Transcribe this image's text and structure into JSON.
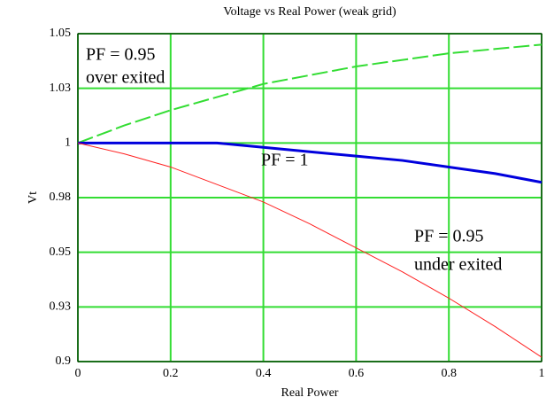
{
  "chart_data": {
    "type": "line",
    "title": "Voltage vs Real Power (weak grid)",
    "x_label": "Real Power",
    "y_label": "Vt",
    "x": [
      0,
      0.1,
      0.2,
      0.3,
      0.4,
      0.5,
      0.6,
      0.7,
      0.8,
      0.9,
      1
    ],
    "series": [
      {
        "color": "#33dd33",
        "dash": true,
        "values": [
          1,
          1.008,
          1.015,
          1.021,
          1.027,
          1.031,
          1.035,
          1.038,
          1.041,
          1.043,
          1.045
        ]
      },
      {
        "color": "#0000dd",
        "dash": false,
        "width": 3,
        "values": [
          1,
          1,
          1,
          1,
          0.998,
          0.996,
          0.994,
          0.992,
          0.989,
          0.986,
          0.982
        ]
      },
      {
        "color": "#ff2020",
        "dash": false,
        "width": 1,
        "values": [
          1,
          0.995,
          0.989,
          0.981,
          0.973,
          0.963,
          0.952,
          0.941,
          0.929,
          0.916,
          0.902
        ]
      }
    ],
    "annotations": [
      "PF = 0.95",
      "over exited",
      "PF = 1",
      "PF = 0.95",
      "under exited"
    ],
    "xlim": [
      0,
      1
    ],
    "ylim": [
      0.9,
      1.05
    ],
    "xticks": [
      0,
      0.2,
      0.4,
      0.6,
      0.8,
      1
    ],
    "yticks": [
      0.9,
      {
        "value": 0.925,
        "label": "0.93"
      },
      0.95,
      {
        "value": 0.975,
        "label": "0.98"
      },
      1,
      {
        "value": 1.025,
        "label": "1.03"
      },
      1.05
    ],
    "grid": true,
    "grid_color": "#33dd33"
  }
}
